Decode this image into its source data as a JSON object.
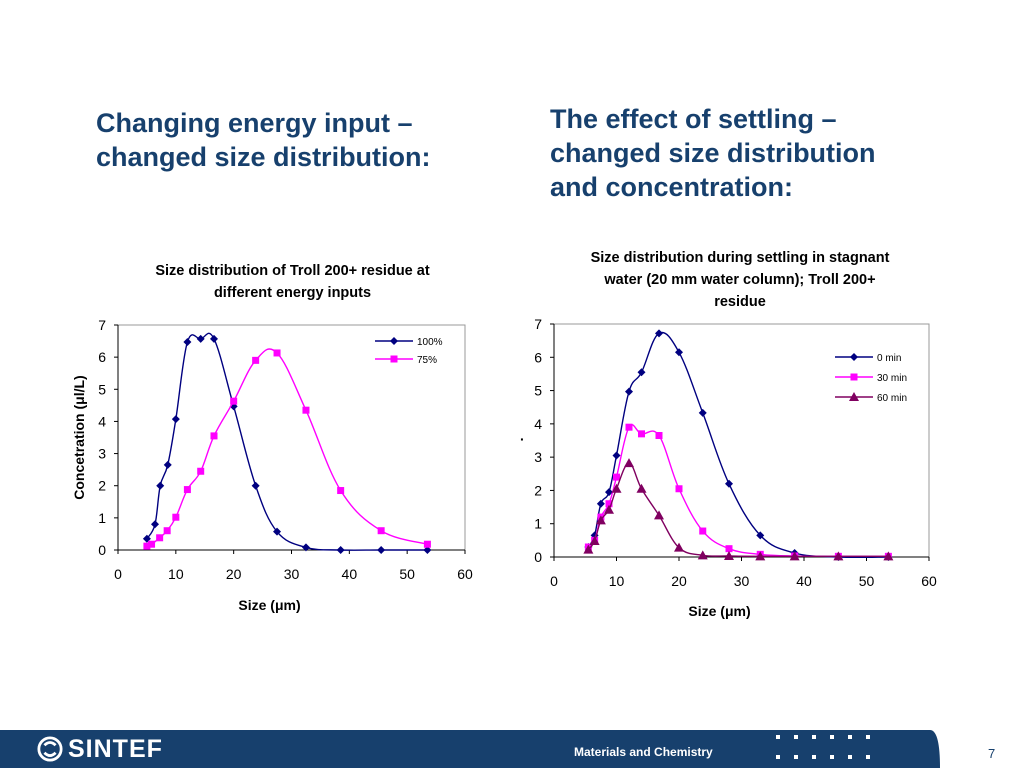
{
  "slide": {
    "left_heading": [
      "Changing energy input –",
      "changed size distribution:"
    ],
    "right_heading": [
      "The effect of settling –",
      "changed size distribution",
      "and concentration:"
    ],
    "footer": {
      "logo_text": "SINTEF",
      "department": "Materials and Chemistry",
      "page_number": "7"
    },
    "colors": {
      "heading": "#17406d",
      "footer_bg": "#17406d"
    }
  },
  "chart_data": [
    {
      "type": "line",
      "title_lines": [
        "Size distribution of Troll 200+ residue at",
        "different energy inputs"
      ],
      "xlabel": "Size (μm)",
      "ylabel": "Concetration (μl/L)",
      "xlim": [
        0,
        60
      ],
      "ylim": [
        0,
        7
      ],
      "xticks": [
        0,
        10,
        20,
        30,
        40,
        50,
        60
      ],
      "yticks": [
        0,
        1,
        2,
        3,
        4,
        5,
        6,
        7
      ],
      "grid": false,
      "legend_position": "top-right",
      "series": [
        {
          "name": "100%",
          "color": "#000080",
          "marker": "diamond",
          "x": [
            5.0,
            6.4,
            7.3,
            8.6,
            10.0,
            12.0,
            14.3,
            16.6,
            20.0,
            23.8,
            27.5,
            32.5,
            38.5,
            45.5,
            53.5
          ],
          "y": [
            0.35,
            0.8,
            2.0,
            2.65,
            4.07,
            6.47,
            6.57,
            6.57,
            4.47,
            2.0,
            0.57,
            0.08,
            0.0,
            0.0,
            0.0
          ]
        },
        {
          "name": "75%",
          "color": "#ff00ff",
          "marker": "square",
          "x": [
            5.0,
            5.8,
            7.2,
            8.5,
            10.0,
            12.0,
            14.3,
            16.6,
            20.0,
            23.8,
            27.5,
            32.5,
            38.5,
            45.5,
            53.5
          ],
          "y": [
            0.12,
            0.18,
            0.38,
            0.6,
            1.02,
            1.88,
            2.45,
            3.55,
            4.63,
            5.9,
            6.13,
            4.35,
            1.85,
            0.6,
            0.18
          ]
        }
      ]
    },
    {
      "type": "line",
      "title_lines": [
        "Size distribution during settling in stagnant",
        "water (20 mm water column); Troll 200+",
        "residue"
      ],
      "xlabel": "Size (μm)",
      "ylabel": ".",
      "xlim": [
        0,
        60
      ],
      "ylim": [
        0,
        7
      ],
      "xticks": [
        0,
        10,
        20,
        30,
        40,
        50,
        60
      ],
      "yticks": [
        0,
        1,
        2,
        3,
        4,
        5,
        6,
        7
      ],
      "grid": false,
      "legend_position": "top-right",
      "series": [
        {
          "name": "0 min",
          "color": "#000080",
          "marker": "diamond",
          "x": [
            5.5,
            6.5,
            7.5,
            8.8,
            10.0,
            12.0,
            14.0,
            16.8,
            20.0,
            23.8,
            28.0,
            33.0,
            38.5,
            45.5,
            53.5
          ],
          "y": [
            0.3,
            0.65,
            1.6,
            1.95,
            3.05,
            4.97,
            5.55,
            6.72,
            6.15,
            4.33,
            2.2,
            0.65,
            0.12,
            0.0,
            0.0
          ]
        },
        {
          "name": "30 min",
          "color": "#ff00ff",
          "marker": "square",
          "x": [
            5.5,
            6.5,
            7.5,
            8.8,
            10.0,
            12.0,
            14.0,
            16.8,
            20.0,
            23.8,
            28.0,
            33.0,
            38.5,
            45.5,
            53.5
          ],
          "y": [
            0.3,
            0.5,
            1.2,
            1.6,
            2.4,
            3.9,
            3.7,
            3.65,
            2.05,
            0.78,
            0.25,
            0.08,
            0.03,
            0.02,
            0.02
          ]
        },
        {
          "name": "60 min",
          "color": "#800060",
          "marker": "triangle",
          "x": [
            5.5,
            6.5,
            7.5,
            8.8,
            10.0,
            12.0,
            14.0,
            16.8,
            20.0,
            23.8,
            28.0,
            33.0,
            38.5,
            45.5,
            53.5
          ],
          "y": [
            0.22,
            0.48,
            1.1,
            1.42,
            2.05,
            2.82,
            2.05,
            1.25,
            0.28,
            0.05,
            0.03,
            0.02,
            0.02,
            0.02,
            0.02
          ]
        }
      ]
    }
  ]
}
